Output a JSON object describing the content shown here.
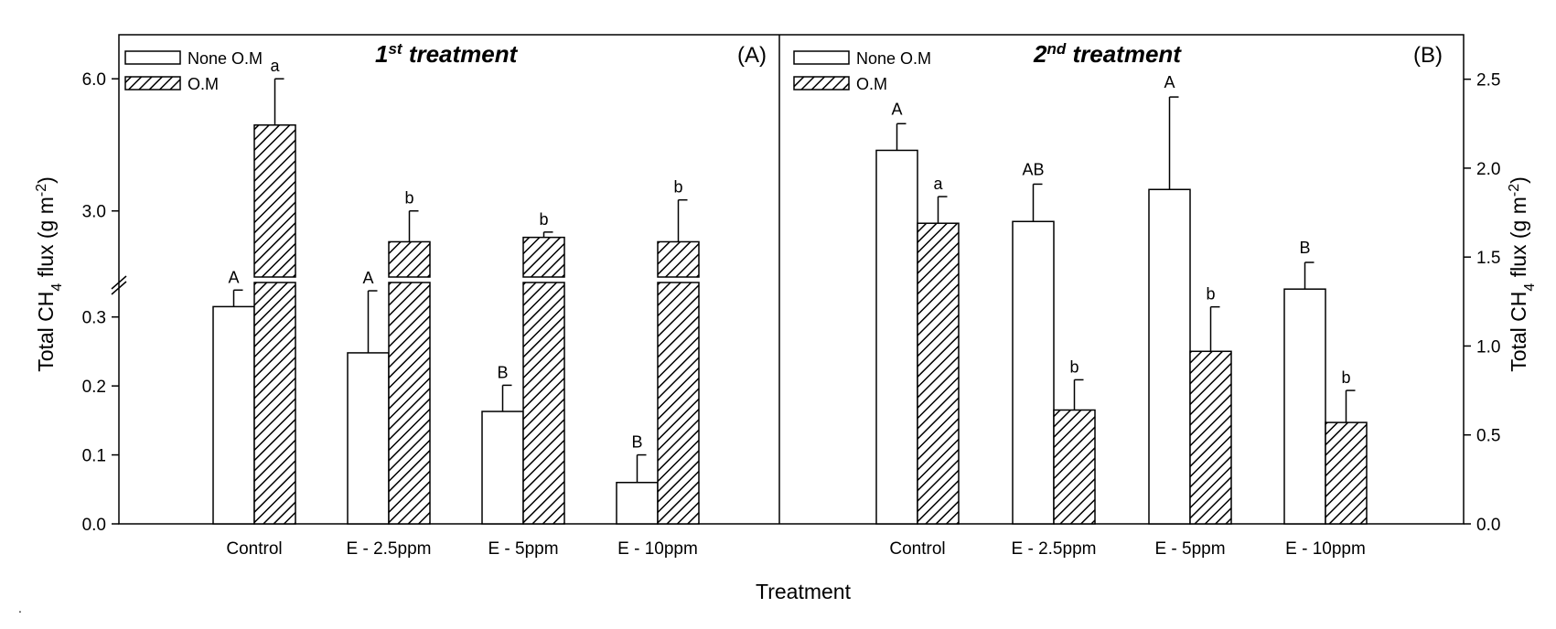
{
  "chart_data": [
    {
      "type": "bar",
      "panel": "A",
      "title": "1st treatment",
      "title_num": "1",
      "title_sup": "st",
      "title_rest": " treatment",
      "panel_label": "(A)",
      "ylabel_pre": "Total CH",
      "ylabel_sub": "4",
      "ylabel_mid": " flux (g m",
      "ylabel_sup": "-2",
      "ylabel_end": ")",
      "y_axis": "left, broken",
      "ylim_lower": [
        0,
        0.35
      ],
      "ylim_upper": [
        1.5,
        7.0
      ],
      "yticks_lower": [
        "0.0",
        "0.1",
        "0.2",
        "0.3"
      ],
      "yticks_upper": [
        "3.0",
        "6.0"
      ],
      "categories": [
        "Control",
        "E - 2.5ppm",
        "E - 5ppm",
        "E - 10ppm"
      ],
      "series": [
        {
          "name": "None O.M",
          "values": [
            0.315,
            0.248,
            0.163,
            0.06
          ],
          "errors": [
            0.024,
            0.09,
            0.038,
            0.04
          ],
          "letters": [
            "A",
            "A",
            "B",
            "B"
          ]
        },
        {
          "name": "O.M",
          "values": [
            4.95,
            2.3,
            2.4,
            2.3
          ],
          "errors": [
            1.05,
            0.7,
            0.12,
            0.95
          ],
          "letters": [
            "a",
            "b",
            "b",
            "b"
          ]
        }
      ],
      "legend": [
        "None O.M",
        "O.M"
      ]
    },
    {
      "type": "bar",
      "panel": "B",
      "title": "2nd treatment",
      "title_num": "2",
      "title_sup": "nd",
      "title_rest": " treatment",
      "panel_label": "(B)",
      "ylabel_pre": "Total CH",
      "ylabel_sub": "4",
      "ylabel_mid": " flux (g m",
      "ylabel_sup": "-2",
      "ylabel_end": ")",
      "y_axis": "right",
      "ylim": [
        0,
        2.75
      ],
      "yticks": [
        "0.0",
        "0.5",
        "1.0",
        "1.5",
        "2.0",
        "2.5"
      ],
      "categories": [
        "Control",
        "E - 2.5ppm",
        "E -  5ppm",
        "E - 10ppm"
      ],
      "series": [
        {
          "name": "None O.M",
          "values": [
            2.1,
            1.7,
            1.88,
            1.32
          ],
          "errors": [
            0.15,
            0.21,
            0.52,
            0.15
          ],
          "letters": [
            "A",
            "AB",
            "A",
            "B"
          ]
        },
        {
          "name": "O.M",
          "values": [
            1.69,
            0.64,
            0.97,
            0.57
          ],
          "errors": [
            0.15,
            0.17,
            0.25,
            0.18
          ],
          "letters": [
            "a",
            "b",
            "b",
            "b"
          ]
        }
      ],
      "legend": [
        "None O.M",
        "O.M"
      ]
    }
  ],
  "xlabel": "Treatment",
  "footnote": "."
}
